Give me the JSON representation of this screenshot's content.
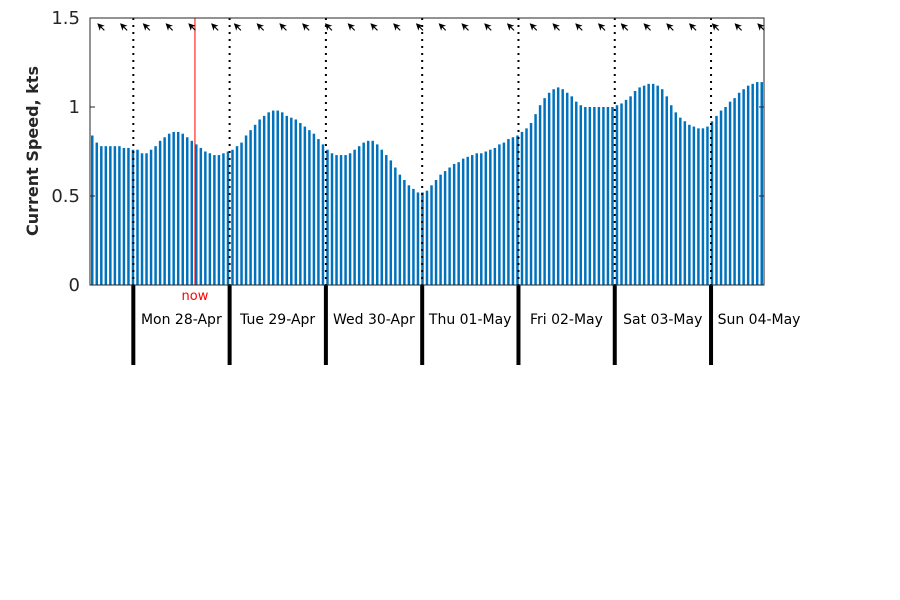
{
  "chart_data": {
    "type": "bar",
    "ylabel": "Current Speed, kts",
    "ylim": [
      0,
      1.5
    ],
    "yticks": [
      "0",
      "0.5",
      "1",
      "1.5"
    ],
    "bar_color": "#0072BD",
    "now_color": "#ff0000",
    "now_label": "now",
    "now_time": 0.64,
    "x_start": -0.45,
    "x_end": 6.55,
    "days": [
      {
        "label": "Mon 28-Apr",
        "start": 0
      },
      {
        "label": "Tue 29-Apr",
        "start": 1
      },
      {
        "label": "Wed 30-Apr",
        "start": 2
      },
      {
        "label": "Thu 01-May",
        "start": 3
      },
      {
        "label": "Fri 02-May",
        "start": 4
      },
      {
        "label": "Sat 03-May",
        "start": 5
      },
      {
        "label": "Sun 04-May",
        "start": 6
      }
    ],
    "direction_arrows": {
      "count": 30,
      "heading_deg": 315
    },
    "values": [
      0.84,
      0.8,
      0.78,
      0.78,
      0.78,
      0.78,
      0.78,
      0.77,
      0.77,
      0.76,
      0.76,
      0.74,
      0.74,
      0.76,
      0.78,
      0.81,
      0.83,
      0.85,
      0.86,
      0.86,
      0.85,
      0.83,
      0.81,
      0.79,
      0.77,
      0.75,
      0.74,
      0.73,
      0.73,
      0.74,
      0.75,
      0.76,
      0.78,
      0.8,
      0.84,
      0.87,
      0.9,
      0.93,
      0.95,
      0.97,
      0.98,
      0.98,
      0.97,
      0.95,
      0.94,
      0.93,
      0.91,
      0.89,
      0.87,
      0.85,
      0.82,
      0.79,
      0.76,
      0.74,
      0.73,
      0.73,
      0.73,
      0.74,
      0.76,
      0.78,
      0.8,
      0.81,
      0.81,
      0.79,
      0.76,
      0.73,
      0.7,
      0.66,
      0.62,
      0.59,
      0.56,
      0.54,
      0.52,
      0.52,
      0.53,
      0.56,
      0.59,
      0.62,
      0.64,
      0.66,
      0.68,
      0.69,
      0.71,
      0.72,
      0.73,
      0.74,
      0.74,
      0.75,
      0.76,
      0.77,
      0.79,
      0.8,
      0.82,
      0.83,
      0.84,
      0.86,
      0.88,
      0.91,
      0.96,
      1.01,
      1.05,
      1.08,
      1.1,
      1.11,
      1.1,
      1.08,
      1.06,
      1.03,
      1.01,
      1.0,
      1.0,
      1.0,
      1.0,
      1.0,
      1.0,
      1.0,
      1.01,
      1.02,
      1.04,
      1.06,
      1.09,
      1.11,
      1.12,
      1.13,
      1.13,
      1.12,
      1.1,
      1.06,
      1.01,
      0.97,
      0.94,
      0.92,
      0.9,
      0.89,
      0.88,
      0.88,
      0.89,
      0.92,
      0.95,
      0.98,
      1.0,
      1.03,
      1.05,
      1.08,
      1.1,
      1.12,
      1.13,
      1.14,
      1.14
    ]
  }
}
